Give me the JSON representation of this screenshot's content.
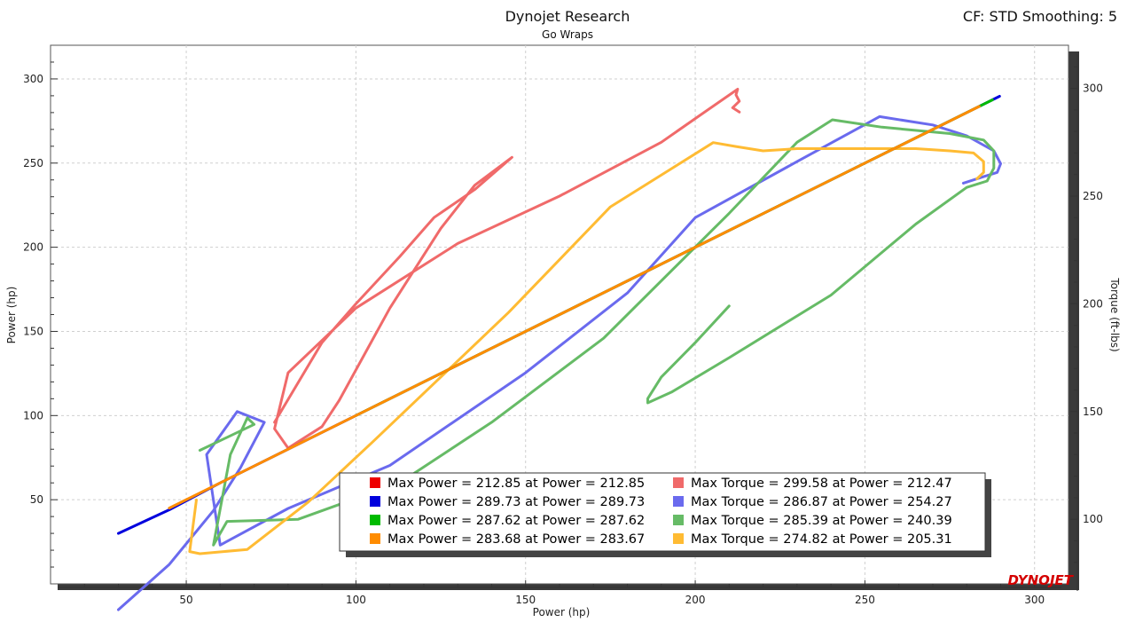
{
  "chart_data": {
    "type": "line",
    "title": "Dynojet Research",
    "subtitle": "Go Wraps",
    "header_right": "CF: STD Smoothing: 5",
    "xlabel": "Power (hp)",
    "ylabel_left": "Power (hp)",
    "ylabel_right": "Torque (ft-lbs)",
    "xlim": [
      10,
      310
    ],
    "ylim_left": [
      0,
      320
    ],
    "ylim_right": [
      70,
      320
    ],
    "xticks": [
      50,
      100,
      150,
      200,
      250,
      300
    ],
    "yticks_left": [
      50,
      100,
      150,
      200,
      250,
      300
    ],
    "yticks_right": [
      100,
      150,
      200,
      250,
      300
    ],
    "grid": true,
    "legend_position": "bottom-right",
    "logo_text": "DYNOJET",
    "series": [
      {
        "name": "Max Power = 212.85 at Power = 212.85",
        "color": "#ee0000",
        "axis": "left",
        "x": [],
        "y": []
      },
      {
        "name": "Max Power = 289.73 at Power = 289.73",
        "color": "#0000dd",
        "axis": "left",
        "x": [
          30,
          45,
          60,
          100,
          150,
          200,
          250,
          289.7
        ],
        "y": [
          30,
          44,
          60,
          100,
          150,
          200,
          250,
          289.7
        ]
      },
      {
        "name": "Max Power = 287.62 at Power = 287.62",
        "color": "#00bb00",
        "axis": "left",
        "x": [
          100,
          150,
          200,
          250,
          284,
          287.6
        ],
        "y": [
          100,
          150,
          200,
          250,
          284,
          287.6
        ]
      },
      {
        "name": "Max Power = 283.68 at Power = 283.67",
        "color": "#ff8c00",
        "axis": "left",
        "x": [
          45,
          52,
          60,
          100,
          150,
          200,
          250,
          283.7
        ],
        "y": [
          45,
          52,
          60,
          100,
          150,
          200,
          250,
          283.7
        ]
      },
      {
        "name": "Max Torque = 299.58 at Power = 212.47",
        "color": "#f06a6a",
        "axis": "right",
        "x": [
          76,
          90,
          100,
          113,
          123,
          135,
          146,
          135,
          125,
          110,
          95,
          90,
          80,
          76,
          80,
          100,
          130,
          160,
          190,
          200,
          212.5,
          212,
          213,
          211,
          213
        ],
        "y": [
          145,
          182,
          200,
          222,
          240,
          253,
          268,
          255,
          235,
          198,
          155,
          143,
          133,
          142,
          168,
          198,
          228,
          250,
          275,
          286,
          299.6,
          297,
          294,
          291,
          289
        ]
      },
      {
        "name": "Max Torque = 286.87 at Power = 254.27",
        "color": "#6a6aee",
        "axis": "right",
        "x": [
          30,
          45,
          58,
          66,
          73,
          65,
          56,
          60,
          80,
          110,
          150,
          180,
          200,
          230,
          254.3,
          270,
          280,
          288,
          290,
          289,
          285,
          279
        ],
        "y": [
          58,
          79,
          104,
          124,
          145,
          150,
          130,
          88,
          105,
          125,
          168,
          205,
          240,
          266,
          286.9,
          283,
          278,
          271,
          265,
          261,
          259,
          256
        ]
      },
      {
        "name": "Max Torque = 285.39 at Power = 240.39",
        "color": "#66bb66",
        "axis": "right",
        "x": [
          54,
          70,
          68,
          63,
          58,
          62,
          83,
          113,
          140,
          173,
          210,
          230,
          240.4,
          255,
          275,
          285,
          288,
          288,
          286,
          280,
          265,
          240,
          210,
          193,
          186,
          186,
          190,
          200,
          210
        ],
        "y": [
          132,
          144,
          147,
          130,
          88,
          99,
          100,
          117,
          145,
          184,
          242,
          275,
          285.4,
          282,
          279,
          276,
          271,
          263,
          257,
          254,
          237,
          204,
          175,
          159,
          154,
          156,
          166,
          182,
          199
        ]
      },
      {
        "name": "Max Torque = 274.82 at Power = 205.31",
        "color": "#ffbb33",
        "axis": "right",
        "x": [
          53,
          51,
          54,
          68,
          86,
          105,
          145,
          175,
          205.3,
          212,
          220,
          230,
          250,
          265,
          275,
          282,
          285,
          285,
          283
        ],
        "y": [
          109,
          85,
          84,
          86,
          108,
          136,
          196,
          245,
          274.8,
          273,
          271,
          272,
          272,
          272,
          271,
          270,
          266,
          261,
          258
        ]
      }
    ]
  }
}
